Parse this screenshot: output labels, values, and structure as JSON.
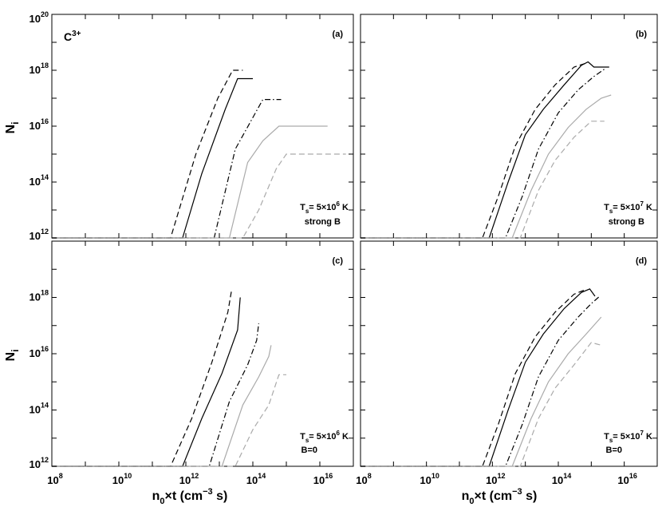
{
  "figure": {
    "ylabel_main": "N",
    "ylabel_sub": "i",
    "xlabel_main": "n",
    "xlabel_sub": "0",
    "xlabel_rest": "×t  (cm",
    "xlabel_sup": "−3",
    "xlabel_end": " s)"
  },
  "chart_data": [
    {
      "type": "line",
      "panel_label": "(a)",
      "species": "C",
      "species_sup": "3+",
      "annotation": {
        "T_main": "T",
        "T_sub": "s",
        "T_value": "= 5×10",
        "T_exp": "6",
        "T_unit": " K",
        "condition": "strong B"
      },
      "xscale": "log",
      "yscale": "log",
      "xlim": [
        100000000.0,
        1e+17
      ],
      "ylim": [
        1000000000000.0,
        1e+20
      ],
      "x_ticks": [
        100000000.0,
        10000000000.0,
        1000000000000.0,
        100000000000000.0,
        1e+16
      ],
      "y_ticks": [
        1000000000000.0,
        100000000000000.0,
        1e+16,
        1e+18,
        1e+20
      ],
      "grid": false,
      "series": [
        {
          "style": "dashed-black",
          "x": [
            100000000.0,
            350000000000.0,
            2000000000000.0,
            9000000000000.0,
            25000000000000.0,
            50000000000000.0
          ],
          "y": [
            1000000000000.0,
            1000000000000.0,
            1000000000000000.0,
            1e+17,
            1e+18,
            1e+18
          ]
        },
        {
          "style": "solid-black",
          "x": [
            100000000.0,
            800000000000.0,
            3000000000000.0,
            15000000000000.0,
            35000000000000.0,
            100000000000000.0
          ],
          "y": [
            1000000000000.0,
            1000000000000.0,
            200000000000000.0,
            4e+16,
            5e+17,
            5e+17
          ]
        },
        {
          "style": "dashdot-black",
          "x": [
            100000000.0,
            7000000000000.0,
            30000000000000.0,
            120000000000000.0,
            200000000000000.0,
            700000000000000.0
          ],
          "y": [
            1000000000000.0,
            1000000000000.0,
            1500000000000000.0,
            3e+16,
            9e+16,
            9e+16
          ]
        },
        {
          "style": "solid-gray",
          "x": [
            100000000.0,
            20000000000000.0,
            70000000000000.0,
            200000000000000.0,
            600000000000000.0,
            1.7e+16
          ],
          "y": [
            1000000000000.0,
            1000000000000.0,
            500000000000000.0,
            3000000000000000.0,
            1e+16,
            1e+16
          ]
        },
        {
          "style": "dashed-gray",
          "x": [
            100000000.0,
            50000000000000.0,
            150000000000000.0,
            500000000000000.0,
            1000000000000000.0,
            6e+16
          ],
          "y": [
            1000000000000.0,
            1000000000000.0,
            10000000000000.0,
            300000000000000.0,
            1000000000000000.0,
            1000000000000000.0
          ]
        }
      ]
    },
    {
      "type": "line",
      "panel_label": "(b)",
      "annotation": {
        "T_main": "T",
        "T_sub": "s",
        "T_value": "= 5×10",
        "T_exp": "7",
        "T_unit": " K",
        "condition": "strong B"
      },
      "xscale": "log",
      "yscale": "log",
      "xlim": [
        100000000.0,
        1e+17
      ],
      "ylim": [
        1000000000000.0,
        1e+20
      ],
      "x_ticks": [
        100000000.0,
        10000000000.0,
        1000000000000.0,
        100000000000000.0,
        1e+16
      ],
      "y_ticks": [
        1000000000000.0,
        100000000000000.0,
        1e+16,
        1e+18,
        1e+20
      ],
      "grid": false,
      "series": [
        {
          "style": "dashed-black",
          "x": [
            100000000.0,
            500000000000.0,
            1500000000000.0,
            5000000000000.0,
            20000000000000.0,
            80000000000000.0,
            300000000000000.0,
            700000000000000.0
          ],
          "y": [
            1000000000000.0,
            1000000000000.0,
            30000000000000.0,
            2000000000000000.0,
            4e+16,
            3e+17,
            1.3e+18,
            1.8e+18
          ]
        },
        {
          "style": "solid-black",
          "x": [
            100000000.0,
            800000000000.0,
            3000000000000.0,
            10000000000000.0,
            35000000000000.0,
            150000000000000.0,
            500000000000000.0,
            800000000000000.0,
            1200000000000000.0,
            3500000000000000.0
          ],
          "y": [
            1000000000000.0,
            1000000000000.0,
            100000000000000.0,
            5000000000000000.0,
            4e+16,
            3e+17,
            1.5e+18,
            2e+18,
            1.3e+18,
            1.3e+18
          ]
        },
        {
          "style": "dashdot-black",
          "x": [
            100000000.0,
            2500000000000.0,
            8000000000000.0,
            25000000000000.0,
            100000000000000.0,
            400000000000000.0,
            1200000000000000.0,
            2500000000000000.0
          ],
          "y": [
            1000000000000.0,
            1000000000000.0,
            30000000000000.0,
            1500000000000000.0,
            3e+16,
            2e+17,
            6e+17,
            1.1e+18
          ]
        },
        {
          "style": "solid-gray",
          "x": [
            100000000.0,
            4000000000000.0,
            15000000000000.0,
            50000000000000.0,
            200000000000000.0,
            700000000000000.0,
            2000000000000000.0,
            4000000000000000.0
          ],
          "y": [
            1000000000000.0,
            1000000000000.0,
            50000000000000.0,
            1000000000000000.0,
            9000000000000000.0,
            4e+16,
            1e+17,
            1.3e+17
          ]
        },
        {
          "style": "dashed-gray",
          "x": [
            100000000.0,
            7000000000000.0,
            25000000000000.0,
            80000000000000.0,
            300000000000000.0,
            1000000000000000.0,
            2500000000000000.0
          ],
          "y": [
            1000000000000.0,
            1000000000000.0,
            50000000000000.0,
            600000000000000.0,
            4000000000000000.0,
            1.5e+16,
            1.5e+16
          ]
        }
      ]
    },
    {
      "type": "line",
      "panel_label": "(c)",
      "annotation": {
        "T_main": "T",
        "T_sub": "s",
        "T_value": "= 5×10",
        "T_exp": "6",
        "T_unit": " K",
        "condition": "B=0"
      },
      "xscale": "log",
      "yscale": "log",
      "xlim": [
        100000000.0,
        1e+17
      ],
      "ylim": [
        1000000000000.0,
        1e+20
      ],
      "x_ticks": [
        100000000.0,
        10000000000.0,
        1000000000000.0,
        100000000000000.0,
        1e+16
      ],
      "y_ticks": [
        1000000000000.0,
        100000000000000.0,
        1e+16,
        1e+18,
        1e+20
      ],
      "grid": false,
      "series": [
        {
          "style": "dashed-black",
          "x": [
            100000000.0,
            350000000000.0,
            1500000000000.0,
            6000000000000.0,
            18000000000000.0,
            23000000000000.0
          ],
          "y": [
            1000000000000.0,
            1000000000000.0,
            50000000000000.0,
            5000000000000000.0,
            3e+17,
            1.7e+18
          ]
        },
        {
          "style": "solid-black",
          "x": [
            100000000.0,
            800000000000.0,
            3000000000000.0,
            12000000000000.0,
            35000000000000.0,
            42000000000000.0
          ],
          "y": [
            1000000000000.0,
            1000000000000.0,
            50000000000000.0,
            2000000000000000.0,
            7e+16,
            1e+18
          ]
        },
        {
          "style": "dashdot-black",
          "x": [
            100000000.0,
            5000000000000.0,
            20000000000000.0,
            70000000000000.0,
            130000000000000.0,
            150000000000000.0
          ],
          "y": [
            1000000000000.0,
            1000000000000.0,
            200000000000000.0,
            4000000000000000.0,
            3e+16,
            1.2e+17
          ]
        },
        {
          "style": "solid-gray",
          "x": [
            100000000.0,
            12000000000000.0,
            50000000000000.0,
            150000000000000.0,
            300000000000000.0,
            350000000000000.0
          ],
          "y": [
            1000000000000.0,
            1000000000000.0,
            150000000000000.0,
            1500000000000000.0,
            8000000000000000.0,
            2e+16
          ]
        },
        {
          "style": "dashed-gray",
          "x": [
            100000000.0,
            30000000000000.0,
            100000000000000.0,
            300000000000000.0,
            600000000000000.0,
            1000000000000000.0
          ],
          "y": [
            1000000000000.0,
            1000000000000.0,
            20000000000000.0,
            150000000000000.0,
            1800000000000000.0,
            1800000000000000.0
          ]
        }
      ]
    },
    {
      "type": "line",
      "panel_label": "(d)",
      "annotation": {
        "T_main": "T",
        "T_sub": "s",
        "T_value": "= 5×10",
        "T_exp": "7",
        "T_unit": " K",
        "condition": "B=0"
      },
      "xscale": "log",
      "yscale": "log",
      "xlim": [
        100000000.0,
        1e+17
      ],
      "ylim": [
        1000000000000.0,
        1e+20
      ],
      "x_ticks": [
        100000000.0,
        10000000000.0,
        1000000000000.0,
        100000000000000.0,
        1e+16
      ],
      "y_ticks": [
        1000000000000.0,
        100000000000000.0,
        1e+16,
        1e+18,
        1e+20
      ],
      "grid": false,
      "series": [
        {
          "style": "dashed-black",
          "x": [
            100000000.0,
            500000000000.0,
            1500000000000.0,
            5000000000000.0,
            20000000000000.0,
            80000000000000.0,
            300000000000000.0,
            600000000000000.0
          ],
          "y": [
            1000000000000.0,
            1000000000000.0,
            30000000000000.0,
            2000000000000000.0,
            4e+16,
            3e+17,
            1.3e+18,
            1.8e+18
          ]
        },
        {
          "style": "solid-black",
          "x": [
            100000000.0,
            800000000000.0,
            3000000000000.0,
            10000000000000.0,
            35000000000000.0,
            150000000000000.0,
            500000000000000.0,
            900000000000000.0,
            1300000000000000.0
          ],
          "y": [
            1000000000000.0,
            1000000000000.0,
            100000000000000.0,
            5000000000000000.0,
            5e+16,
            4e+17,
            1.5e+18,
            2e+18,
            1.1e+18
          ]
        },
        {
          "style": "dashdot-black",
          "x": [
            100000000.0,
            2500000000000.0,
            8000000000000.0,
            25000000000000.0,
            100000000000000.0,
            400000000000000.0,
            1000000000000000.0,
            1800000000000000.0
          ],
          "y": [
            1000000000000.0,
            1000000000000.0,
            30000000000000.0,
            1500000000000000.0,
            3e+16,
            2e+17,
            6e+17,
            1.1e+18
          ]
        },
        {
          "style": "solid-gray",
          "x": [
            100000000.0,
            4000000000000.0,
            15000000000000.0,
            50000000000000.0,
            200000000000000.0,
            700000000000000.0,
            2000000000000000.0
          ],
          "y": [
            1000000000000.0,
            1000000000000.0,
            50000000000000.0,
            1000000000000000.0,
            1e+16,
            5e+16,
            2e+17
          ]
        },
        {
          "style": "dashed-gray",
          "x": [
            100000000.0,
            7000000000000.0,
            25000000000000.0,
            80000000000000.0,
            300000000000000.0,
            1000000000000000.0,
            2000000000000000.0
          ],
          "y": [
            1000000000000.0,
            1000000000000.0,
            50000000000000.0,
            600000000000000.0,
            4000000000000000.0,
            2.5e+16,
            2e+16
          ]
        }
      ]
    }
  ]
}
